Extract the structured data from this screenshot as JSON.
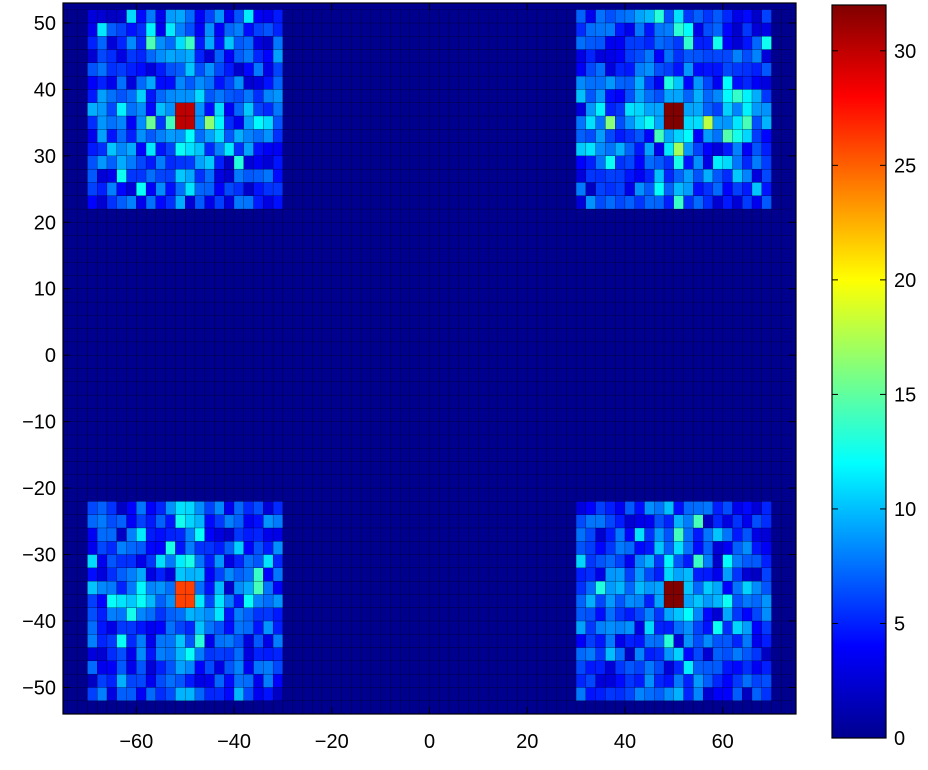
{
  "chart_data": {
    "type": "heatmap",
    "title": "",
    "xlabel": "",
    "ylabel": "",
    "xlim": [
      -75,
      75
    ],
    "ylim": [
      -54,
      53
    ],
    "grid_step": 2,
    "x_ticks": [
      {
        "value": -60,
        "label": "−60"
      },
      {
        "value": -40,
        "label": "−40"
      },
      {
        "value": -20,
        "label": "−20"
      },
      {
        "value": 0,
        "label": "0"
      },
      {
        "value": 20,
        "label": "20"
      },
      {
        "value": 40,
        "label": "40"
      },
      {
        "value": 60,
        "label": "60"
      }
    ],
    "y_ticks": [
      {
        "value": 50,
        "label": "50"
      },
      {
        "value": 40,
        "label": "40"
      },
      {
        "value": 30,
        "label": "30"
      },
      {
        "value": 20,
        "label": "20"
      },
      {
        "value": 10,
        "label": "10"
      },
      {
        "value": 0,
        "label": "0"
      },
      {
        "value": -10,
        "label": "−10"
      },
      {
        "value": -20,
        "label": "−20"
      },
      {
        "value": -30,
        "label": "−30"
      },
      {
        "value": -40,
        "label": "−40"
      },
      {
        "value": -50,
        "label": "−50"
      }
    ],
    "colorbar": {
      "colormap": "jet",
      "range": [
        0,
        32
      ],
      "ticks": [
        {
          "value": 0,
          "label": "0"
        },
        {
          "value": 5,
          "label": "5"
        },
        {
          "value": 10,
          "label": "10"
        },
        {
          "value": 15,
          "label": "15"
        },
        {
          "value": 20,
          "label": "20"
        },
        {
          "value": 25,
          "label": "25"
        },
        {
          "value": 30,
          "label": "30"
        }
      ]
    },
    "clusters": [
      {
        "name": "top-left",
        "x_range": [
          -70,
          -30
        ],
        "y_range": [
          22,
          52
        ],
        "peak": {
          "x": -50,
          "y": 36,
          "value": 30
        }
      },
      {
        "name": "top-right",
        "x_range": [
          30,
          70
        ],
        "y_range": [
          22,
          52
        ],
        "peak": {
          "x": 50,
          "y": 36,
          "value": 32
        }
      },
      {
        "name": "bottom-left",
        "x_range": [
          -70,
          -30
        ],
        "y_range": [
          -52,
          -22
        ],
        "peak": {
          "x": -50,
          "y": -36,
          "value": 26
        }
      },
      {
        "name": "bottom-right",
        "x_range": [
          30,
          70
        ],
        "y_range": [
          -52,
          -22
        ],
        "peak": {
          "x": 50,
          "y": -36,
          "value": 32
        }
      }
    ],
    "background_value": 0.5
  }
}
